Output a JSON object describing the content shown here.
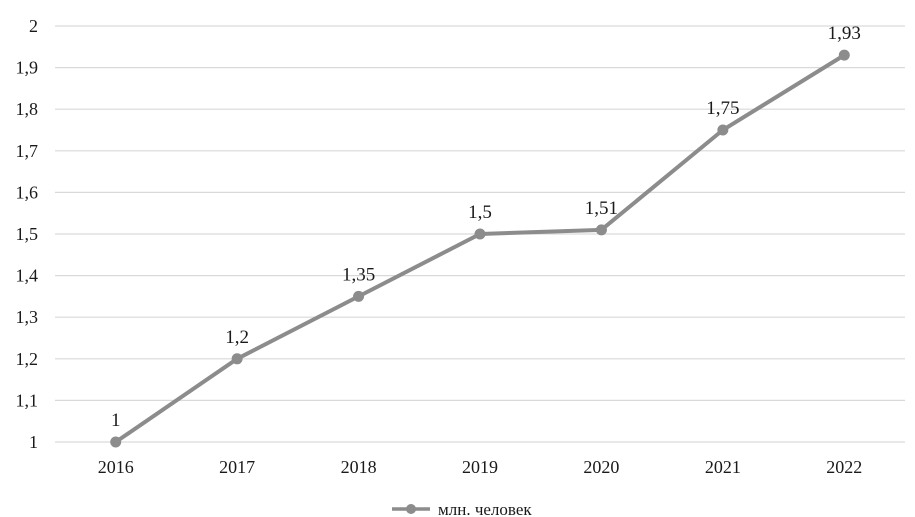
{
  "chart_data": {
    "type": "line",
    "title": "",
    "xlabel": "",
    "ylabel": "",
    "categories": [
      "2016",
      "2017",
      "2018",
      "2019",
      "2020",
      "2021",
      "2022"
    ],
    "series": [
      {
        "name": "млн. человек",
        "values": [
          1,
          1.2,
          1.35,
          1.5,
          1.51,
          1.75,
          1.93
        ],
        "data_labels": [
          "1",
          "1,2",
          "1,35",
          "1,5",
          "1,51",
          "1,75",
          "1,93"
        ],
        "color": "#8c8c8c"
      }
    ],
    "ylim": [
      1,
      2
    ],
    "yticks": [
      1,
      1.1,
      1.2,
      1.3,
      1.4,
      1.5,
      1.6,
      1.7,
      1.8,
      1.9,
      2
    ],
    "ytick_labels": [
      "1",
      "1,1",
      "1,2",
      "1,3",
      "1,4",
      "1,5",
      "1,6",
      "1,7",
      "1,8",
      "1,9",
      "2"
    ],
    "grid": true,
    "legend": "bottom-center"
  }
}
